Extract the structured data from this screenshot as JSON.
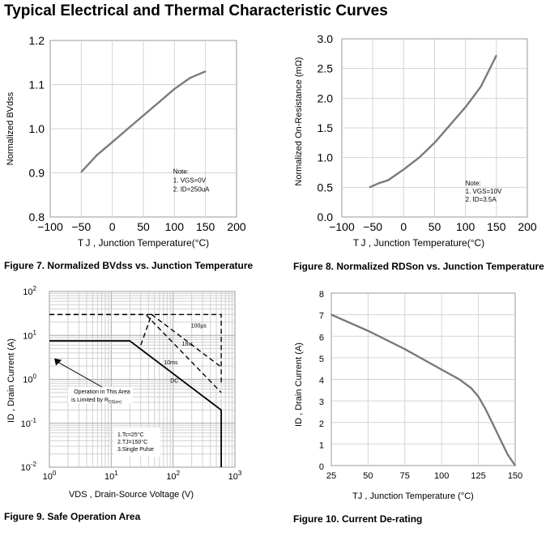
{
  "page": {
    "title": "Typical Electrical and Thermal Characteristic Curves"
  },
  "chart_data": [
    {
      "id": "fig7",
      "type": "line",
      "caption": "Figure 7. Normalized BVdss vs. Junction Temperature",
      "xlabel": "T J , Junction Temperature(°C)",
      "ylabel": "Normalized BVdss",
      "xlim": [
        -100,
        200
      ],
      "ylim": [
        0.8,
        1.2
      ],
      "xticks": [
        "−100",
        "−50",
        "0",
        "50",
        "100",
        "150",
        "200"
      ],
      "xtick_values": [
        -100,
        -50,
        0,
        50,
        100,
        150,
        200
      ],
      "yticks": [
        "0.8",
        "0.9",
        "1.0",
        "1.1",
        "1.2"
      ],
      "ytick_values": [
        0.8,
        0.9,
        1.0,
        1.1,
        1.2
      ],
      "grid": true,
      "line_color": "#7a7a7a",
      "series": [
        {
          "x": [
            -50,
            -25,
            0,
            25,
            50,
            75,
            100,
            125,
            150
          ],
          "values": [
            0.902,
            0.94,
            0.97,
            1.0,
            1.03,
            1.06,
            1.09,
            1.115,
            1.13
          ]
        }
      ],
      "note": {
        "title": "Note:",
        "lines": [
          "1. VGS=0V",
          "2. ID=250uA"
        ]
      }
    },
    {
      "id": "fig8",
      "type": "line",
      "caption": "Figure 8. Normalized RDSon vs. Junction Temperature",
      "xlabel": "T J , Junction Temperature(°C)",
      "ylabel": "Normalized On-Resistance (mΩ)",
      "xlim": [
        -100,
        200
      ],
      "ylim": [
        0.0,
        3.0
      ],
      "xticks": [
        "−100",
        "−50",
        "0",
        "50",
        "100",
        "150",
        "200"
      ],
      "xtick_values": [
        -100,
        -50,
        0,
        50,
        100,
        150,
        200
      ],
      "yticks": [
        "0.0",
        "0.5",
        "1.0",
        "1.5",
        "2.0",
        "2.5",
        "3.0"
      ],
      "ytick_values": [
        0.0,
        0.5,
        1.0,
        1.5,
        2.0,
        2.5,
        3.0
      ],
      "grid": true,
      "line_color": "#7a7a7a",
      "series": [
        {
          "x": [
            -55,
            -40,
            -25,
            0,
            25,
            50,
            75,
            100,
            125,
            150
          ],
          "values": [
            0.5,
            0.57,
            0.62,
            0.8,
            1.0,
            1.25,
            1.55,
            1.85,
            2.2,
            2.72
          ]
        }
      ],
      "note": {
        "title": "Note:",
        "lines": [
          "1. VGS=10V",
          "2. ID=3.5A"
        ]
      }
    },
    {
      "id": "fig9",
      "type": "line",
      "caption": "Figure 9. Safe Operation Area",
      "xlabel": "VDS , Drain-Source Voltage (V)",
      "ylabel": "ID , Drain Current (A)",
      "xscale": "log",
      "yscale": "log",
      "xlim": [
        1,
        1000
      ],
      "ylim": [
        0.01,
        100
      ],
      "xticks": [
        "10^0",
        "10^1",
        "10^2",
        "10^3"
      ],
      "xtick_values": [
        1,
        10,
        100,
        1000
      ],
      "yticks": [
        "10^-2",
        "10^-1",
        "10^0",
        "10^1",
        "10^2"
      ],
      "ytick_values": [
        0.01,
        0.1,
        1,
        10,
        100
      ],
      "grid": true,
      "line_color": "#000000",
      "series": [
        {
          "name": "DC",
          "style": "solid",
          "x": [
            1,
            20,
            600,
            600
          ],
          "values": [
            7.5,
            7.5,
            0.2,
            0.01
          ]
        },
        {
          "name": "10ms",
          "style": "dashed",
          "x": [
            1,
            36,
            600
          ],
          "values": [
            30,
            30,
            0.5
          ]
        },
        {
          "name": "1ms",
          "style": "dashed",
          "x": [
            30,
            45,
            600
          ],
          "values": [
            6,
            30,
            1.9
          ]
        },
        {
          "name": "100µs",
          "style": "dashed",
          "x": [
            1,
            600,
            600
          ],
          "values": [
            30,
            30,
            0.75
          ]
        },
        {
          "name": "",
          "style": "dashed",
          "x": [
            1,
            1
          ],
          "values": [
            30,
            30
          ]
        }
      ],
      "labels": [
        {
          "text": "100µs",
          "x": 260,
          "y": 15
        },
        {
          "text": "1ms",
          "x": 170,
          "y": 5.8
        },
        {
          "text": "10ms",
          "x": 92,
          "y": 2.2
        },
        {
          "text": "DC",
          "x": 105,
          "y": 0.85
        }
      ],
      "annotation": {
        "lines": [
          "Operation in This Area",
          "is Limited by R",
          "DS(on)"
        ],
        "arrow_to": [
          1.2,
          3
        ]
      },
      "note": {
        "lines": [
          "1.Tc=25°C",
          "2.TJ=150°C",
          "3.Single Pulse"
        ]
      }
    },
    {
      "id": "fig10",
      "type": "line",
      "caption": "Figure 10. Current De-rating",
      "xlabel": "TJ , Junction Temperature (°C)",
      "ylabel": "ID , Drain Current (A)",
      "xlim": [
        25,
        150
      ],
      "ylim": [
        0,
        8
      ],
      "xticks": [
        "25",
        "50",
        "75",
        "100",
        "125",
        "150"
      ],
      "xtick_values": [
        25,
        50,
        75,
        100,
        125,
        150
      ],
      "yticks": [
        "0",
        "1",
        "2",
        "3",
        "4",
        "5",
        "6",
        "7",
        "8"
      ],
      "ytick_values": [
        0,
        1,
        2,
        3,
        4,
        5,
        6,
        7,
        8
      ],
      "grid": true,
      "line_color": "#7a7a7a",
      "series": [
        {
          "x": [
            25,
            50,
            75,
            100,
            112,
            120,
            125,
            130,
            135,
            140,
            145,
            150
          ],
          "values": [
            7.0,
            6.25,
            5.4,
            4.45,
            4.0,
            3.6,
            3.2,
            2.6,
            1.9,
            1.2,
            0.5,
            0.0
          ]
        }
      ]
    }
  ]
}
